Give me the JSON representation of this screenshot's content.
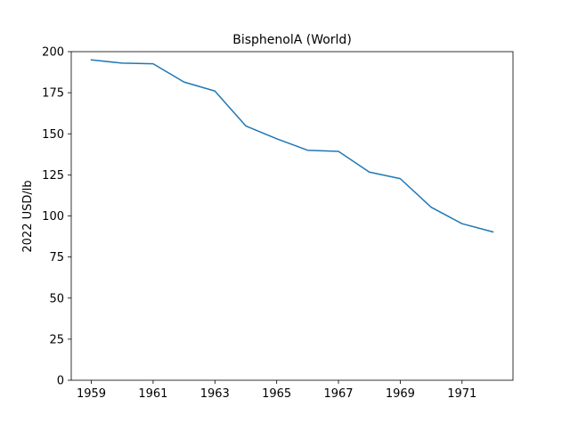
{
  "chart_data": {
    "type": "line",
    "title": "BisphenolA (World)",
    "xlabel": "",
    "ylabel": "2022 USD/lb",
    "xlim": [
      1958.35,
      1972.65
    ],
    "ylim": [
      0,
      200
    ],
    "x_ticks": [
      1959,
      1961,
      1963,
      1965,
      1967,
      1969,
      1971
    ],
    "x_tick_labels": [
      "1959",
      "1961",
      "1963",
      "1965",
      "1967",
      "1969",
      "1971"
    ],
    "y_ticks": [
      0,
      25,
      50,
      75,
      100,
      125,
      150,
      175,
      200
    ],
    "y_tick_labels": [
      "0",
      "25",
      "50",
      "75",
      "100",
      "125",
      "150",
      "175",
      "200"
    ],
    "grid": false,
    "series": [
      {
        "color": "#1f77b4",
        "x": [
          1959,
          1960,
          1961,
          1962,
          1963,
          1964,
          1965,
          1966,
          1967,
          1968,
          1969,
          1970,
          1971,
          1972
        ],
        "y": [
          195.0,
          193.0,
          192.6,
          181.5,
          176.0,
          154.8,
          147.0,
          140.0,
          139.3,
          126.7,
          122.7,
          105.3,
          95.3,
          90.3
        ]
      }
    ]
  }
}
